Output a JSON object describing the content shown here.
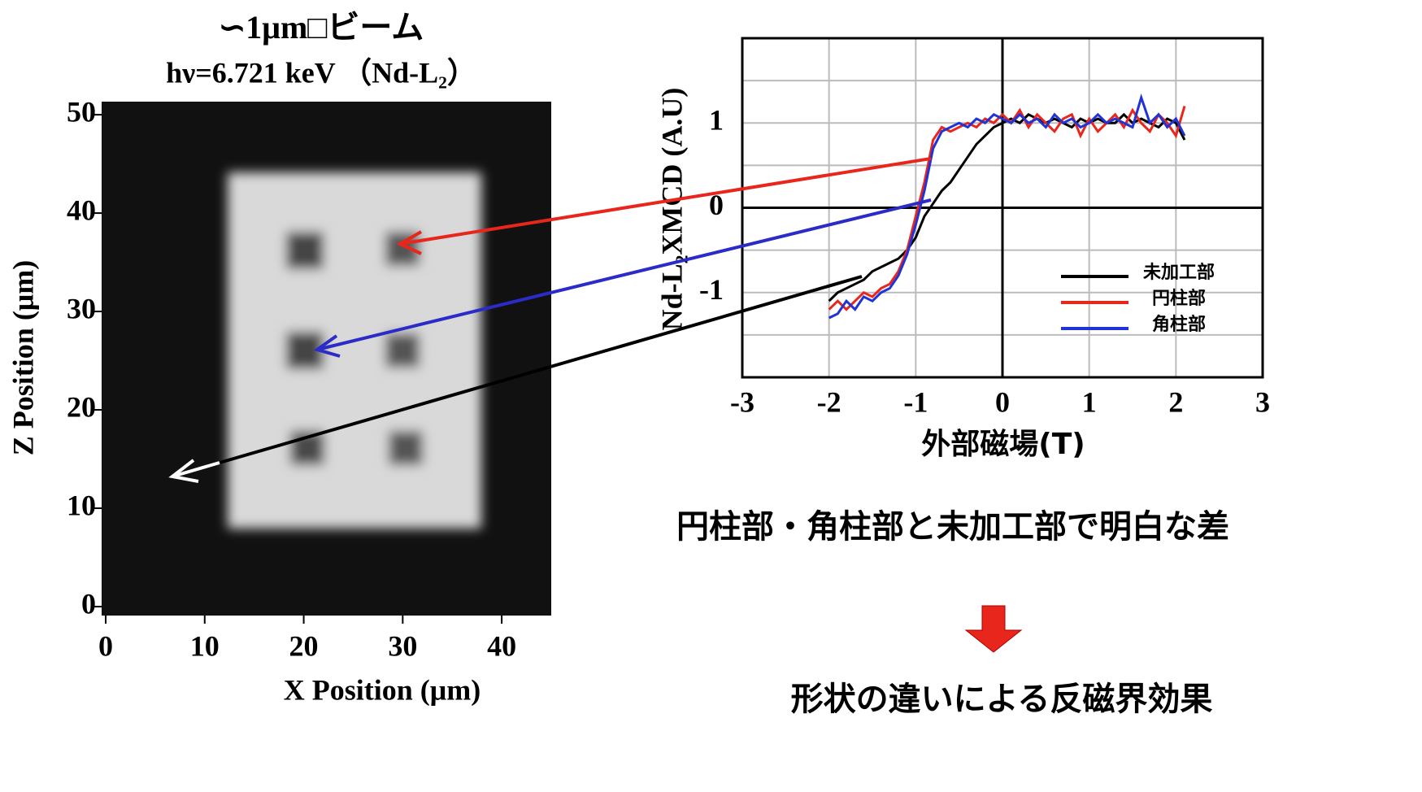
{
  "chart_data": [
    {
      "type": "image",
      "title": "∽1μm□ビーム",
      "subtitle": "hν=6.721 keV （Nd-L₂）",
      "x_label": "X Position (μm)",
      "y_label": "Z Position (μm)",
      "xlim": [
        0,
        45
      ],
      "xticks": [
        0,
        10,
        20,
        30,
        40
      ],
      "ylim": [
        0,
        51
      ],
      "yticks": [
        0,
        10,
        20,
        30,
        40,
        50
      ]
    },
    {
      "type": "line",
      "x_label": "外部磁場(T)",
      "y_label": "Nd-L₂XMCD (A.U)",
      "xlim": [
        -3,
        3
      ],
      "xticks": [
        -3,
        -2,
        -1,
        0,
        1,
        2,
        3
      ],
      "ylim": [
        -2,
        2
      ],
      "yticks": [
        -1,
        0,
        1
      ],
      "minor_yticks": [
        -1.5,
        -0.5,
        0.5,
        1.5
      ],
      "grid": true,
      "zero_lines": true,
      "legend": "lower right",
      "x": [
        -2.0,
        -1.9,
        -1.8,
        -1.7,
        -1.6,
        -1.5,
        -1.4,
        -1.3,
        -1.2,
        -1.1,
        -1.0,
        -0.9,
        -0.8,
        -0.7,
        -0.6,
        -0.5,
        -0.4,
        -0.3,
        -0.2,
        -0.1,
        0.0,
        0.1,
        0.2,
        0.3,
        0.4,
        0.5,
        0.6,
        0.7,
        0.8,
        0.9,
        1.0,
        1.1,
        1.2,
        1.3,
        1.4,
        1.5,
        1.6,
        1.7,
        1.8,
        1.9,
        2.0,
        2.1
      ],
      "series": [
        {
          "name": "未加工部",
          "color": "#000000",
          "values": [
            -1.1,
            -1.0,
            -0.95,
            -0.9,
            -0.85,
            -0.75,
            -0.7,
            -0.65,
            -0.6,
            -0.5,
            -0.35,
            -0.1,
            0.05,
            0.2,
            0.3,
            0.45,
            0.6,
            0.75,
            0.85,
            0.95,
            1.0,
            1.05,
            1.0,
            1.1,
            1.05,
            1.0,
            1.05,
            1.0,
            0.95,
            1.05,
            1.0,
            1.05,
            1.0,
            1.0,
            1.1,
            1.0,
            1.05,
            1.0,
            0.95,
            1.05,
            1.0,
            0.8
          ]
        },
        {
          "name": "円柱部",
          "color": "#e8261c",
          "values": [
            -1.2,
            -1.1,
            -1.2,
            -1.1,
            -1.0,
            -1.05,
            -0.95,
            -0.9,
            -0.75,
            -0.5,
            -0.1,
            0.3,
            0.8,
            0.95,
            0.9,
            0.95,
            1.0,
            0.95,
            1.05,
            1.0,
            1.1,
            1.0,
            1.15,
            0.95,
            1.1,
            1.0,
            0.9,
            1.05,
            1.1,
            0.85,
            1.05,
            0.9,
            1.0,
            1.1,
            0.95,
            1.15,
            1.0,
            0.9,
            1.1,
            1.0,
            0.85,
            1.2
          ]
        },
        {
          "name": "角柱部",
          "color": "#1f33d6",
          "values": [
            -1.3,
            -1.25,
            -1.1,
            -1.2,
            -1.05,
            -1.1,
            -1.0,
            -0.95,
            -0.8,
            -0.55,
            -0.2,
            0.2,
            0.7,
            0.9,
            0.95,
            1.0,
            0.95,
            1.05,
            1.0,
            1.1,
            1.05,
            1.0,
            1.1,
            1.0,
            1.05,
            0.95,
            1.1,
            1.0,
            1.05,
            0.95,
            1.0,
            1.1,
            1.0,
            1.05,
            1.0,
            0.95,
            1.3,
            1.0,
            1.1,
            0.95,
            1.05,
            0.85
          ]
        }
      ],
      "annotations": [
        "円柱部・角柱部と未加工部で明白な差",
        "形状の違いによる反磁界効果"
      ]
    }
  ]
}
